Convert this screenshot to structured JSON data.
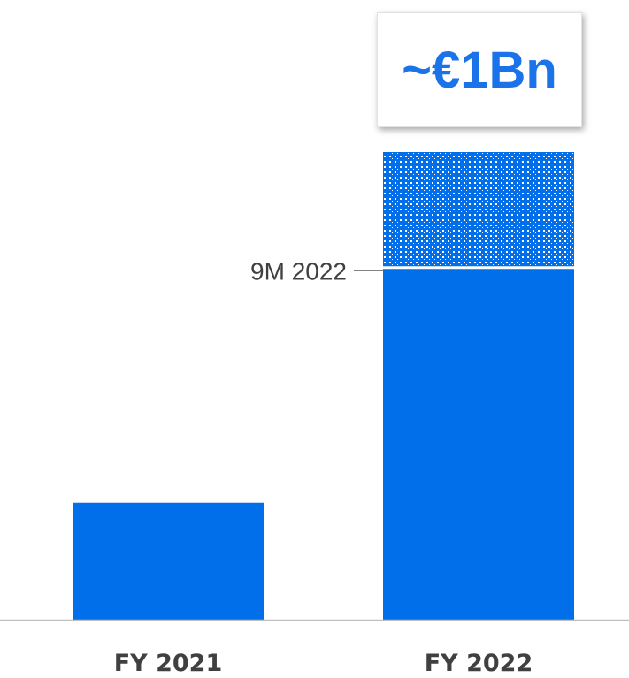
{
  "chart_data": {
    "type": "bar",
    "categories": [
      "FY 2021",
      "FY 2022"
    ],
    "series": [
      {
        "values": [
          0.25,
          0.75
        ]
      },
      {
        "values": [
          0,
          0.25
        ]
      }
    ],
    "annotations": {
      "total_label": "~€1Bn",
      "segment_label": "9M 2022"
    },
    "ylim": [
      0,
      1.0
    ],
    "grid": false,
    "colors": {
      "bar": "#006fe9",
      "pattern_fg": "#006fe9",
      "pattern_bg": "#ffffff",
      "baseline": "#bfbfbf",
      "label_text": "#404040",
      "leader": "#595959",
      "callout_text": "#1a73e8"
    }
  }
}
